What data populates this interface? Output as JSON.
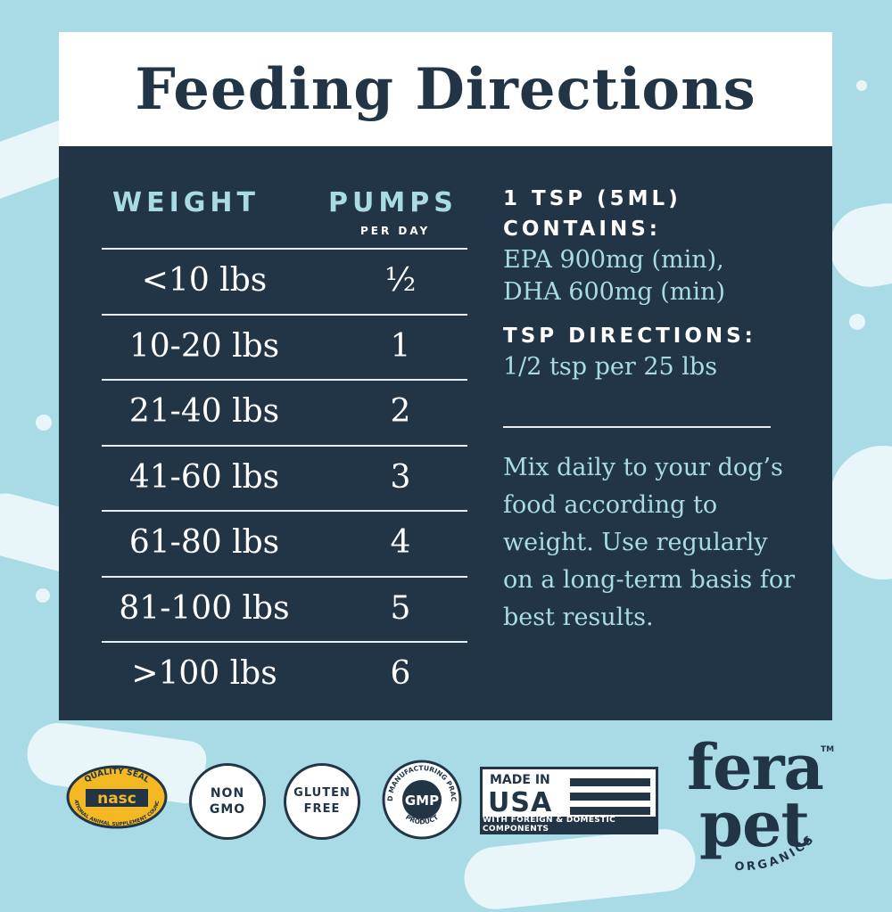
{
  "title": "Feeding Directions",
  "table": {
    "col_weight": "WEIGHT",
    "col_pumps": "PUMPS",
    "col_pumps_sub": "PER DAY",
    "rows": [
      {
        "weight": "<10 lbs",
        "pumps": "½"
      },
      {
        "weight": "10-20 lbs",
        "pumps": "1"
      },
      {
        "weight": "21-40 lbs",
        "pumps": "2"
      },
      {
        "weight": "41-60 lbs",
        "pumps": "3"
      },
      {
        "weight": "61-80 lbs",
        "pumps": "4"
      },
      {
        "weight": "81-100 lbs",
        "pumps": "5"
      },
      {
        "weight": ">100 lbs",
        "pumps": "6"
      }
    ]
  },
  "info": {
    "contains_line1": "1 TSP (5ML)",
    "contains_line2": "CONTAINS:",
    "epa": "EPA 900mg (min),",
    "dha": "DHA 600mg (min)",
    "tsp_heading": "TSP DIRECTIONS:",
    "tsp_value": "1/2 tsp per 25 lbs",
    "mix_text": "Mix daily to your dog’s food according to weight. Use regularly on a long-term basis for best results."
  },
  "badges": {
    "nasc_top": "QUALITY SEAL",
    "nasc_mid": "nasc",
    "nasc_bottom": "NATIONAL ANIMAL SUPPLEMENT COUNCIL",
    "nongmo_1": "NON",
    "nongmo_2": "GMO",
    "gluten_1": "GLUTEN",
    "gluten_2": "FREE",
    "gmp_ring": "GOOD MANUFACTURING PRACTICE",
    "gmp_center": "GMP",
    "gmp_bottom": "PRODUCT",
    "usa_made": "MADE IN",
    "usa_big": "USA",
    "usa_sub": "WITH FOREIGN & DOMESTIC COMPONENTS"
  },
  "logo": {
    "word1": "fera",
    "word2": "pet",
    "tm": "TM",
    "organics": "ORGANICS"
  },
  "colors": {
    "background": "#a9dbe6",
    "panel": "#223547",
    "accent_light": "#a9dbe6",
    "white": "#ffffff",
    "nasc_gold": "#f4b823"
  }
}
